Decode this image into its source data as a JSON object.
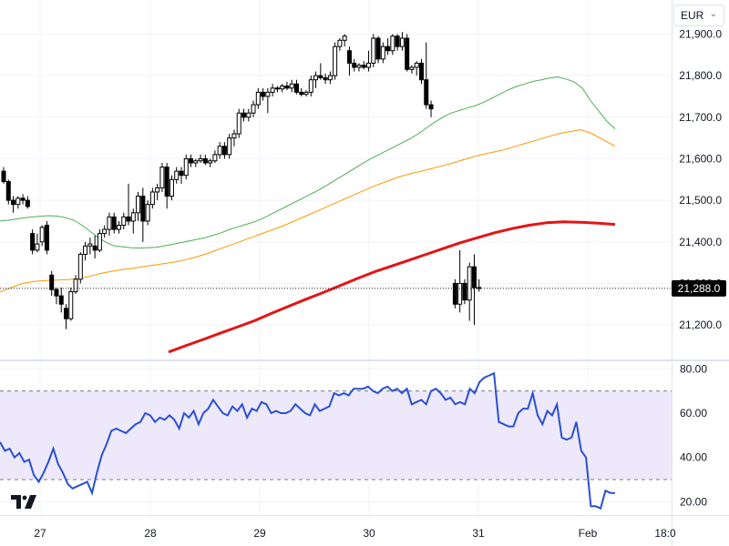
{
  "currency_selector": {
    "value": "EUR",
    "chevron_icon": "chevron-down-icon"
  },
  "last_price_label": "21,288.0",
  "logo": "tradingview-logo",
  "colors": {
    "up_candle": "#ffffff",
    "down_candle": "#000000",
    "ma_short": "#4caf50",
    "ma_mid": "#ff9800",
    "ma_long": "#e51414",
    "rsi_line": "#2a4fd4",
    "rsi_band": "#ede9fa"
  },
  "chart_data": [
    {
      "type": "candlestick",
      "x_ticks": [
        "27",
        "28",
        "29",
        "30",
        "31",
        "Feb",
        "18:0"
      ],
      "y_ticks": [
        "21,200.0",
        "21,300.0",
        "21,400.0",
        "21,500.0",
        "21,600.0",
        "21,700.0",
        "21,800.0",
        "21,900.0"
      ],
      "ylim": [
        21117,
        21982
      ],
      "last_price": 21288,
      "ohlc": [
        [
          21570,
          21580,
          21540,
          21545
        ],
        [
          21545,
          21550,
          21490,
          21500
        ],
        [
          21500,
          21510,
          21470,
          21490
        ],
        [
          21490,
          21510,
          21480,
          21505
        ],
        [
          21505,
          21515,
          21490,
          21500
        ],
        [
          21500,
          21510,
          21480,
          21485
        ],
        [
          21420,
          21430,
          21370,
          21380
        ],
        [
          21380,
          21420,
          21375,
          21395
        ],
        [
          21400,
          21440,
          21390,
          21435
        ],
        [
          21440,
          21450,
          21370,
          21380
        ],
        [
          21320,
          21330,
          21270,
          21285
        ],
        [
          21285,
          21290,
          21250,
          21270
        ],
        [
          21270,
          21290,
          21230,
          21250
        ],
        [
          21240,
          21250,
          21190,
          21215
        ],
        [
          21215,
          21290,
          21210,
          21280
        ],
        [
          21280,
          21320,
          21275,
          21310
        ],
        [
          21310,
          21375,
          21300,
          21370
        ],
        [
          21370,
          21400,
          21355,
          21390
        ],
        [
          21390,
          21410,
          21370,
          21395
        ],
        [
          21390,
          21415,
          21360,
          21380
        ],
        [
          21380,
          21430,
          21375,
          21420
        ],
        [
          21420,
          21440,
          21410,
          21430
        ],
        [
          21430,
          21470,
          21415,
          21460
        ],
        [
          21460,
          21470,
          21420,
          21430
        ],
        [
          21430,
          21450,
          21420,
          21440
        ],
        [
          21440,
          21470,
          21430,
          21460
        ],
        [
          21460,
          21540,
          21440,
          21450
        ],
        [
          21450,
          21480,
          21420,
          21470
        ],
        [
          21470,
          21520,
          21450,
          21510
        ],
        [
          21510,
          21530,
          21400,
          21450
        ],
        [
          21450,
          21500,
          21440,
          21490
        ],
        [
          21490,
          21530,
          21480,
          21520
        ],
        [
          21520,
          21540,
          21500,
          21530
        ],
        [
          21530,
          21590,
          21520,
          21580
        ],
        [
          21580,
          21590,
          21480,
          21510
        ],
        [
          21510,
          21560,
          21500,
          21550
        ],
        [
          21550,
          21580,
          21540,
          21570
        ],
        [
          21570,
          21580,
          21540,
          21560
        ],
        [
          21560,
          21610,
          21550,
          21600
        ],
        [
          21600,
          21610,
          21580,
          21590
        ],
        [
          21590,
          21600,
          21580,
          21595
        ],
        [
          21595,
          21610,
          21590,
          21600
        ],
        [
          21600,
          21610,
          21585,
          21590
        ],
        [
          21590,
          21600,
          21580,
          21595
        ],
        [
          21595,
          21620,
          21590,
          21610
        ],
        [
          21610,
          21640,
          21600,
          21630
        ],
        [
          21630,
          21640,
          21600,
          21610
        ],
        [
          21610,
          21660,
          21600,
          21650
        ],
        [
          21650,
          21670,
          21630,
          21660
        ],
        [
          21660,
          21720,
          21650,
          21710
        ],
        [
          21710,
          21720,
          21690,
          21700
        ],
        [
          21700,
          21720,
          21690,
          21710
        ],
        [
          21710,
          21740,
          21700,
          21730
        ],
        [
          21730,
          21770,
          21720,
          21760
        ],
        [
          21760,
          21770,
          21740,
          21750
        ],
        [
          21750,
          21770,
          21710,
          21760
        ],
        [
          21760,
          21780,
          21750,
          21770
        ],
        [
          21770,
          21775,
          21760,
          21768
        ],
        [
          21768,
          21780,
          21760,
          21775
        ],
        [
          21775,
          21785,
          21765,
          21770
        ],
        [
          21770,
          21790,
          21760,
          21780
        ],
        [
          21780,
          21790,
          21755,
          21760
        ],
        [
          21760,
          21770,
          21750,
          21755
        ],
        [
          21755,
          21765,
          21750,
          21760
        ],
        [
          21760,
          21800,
          21750,
          21790
        ],
        [
          21790,
          21810,
          21770,
          21800
        ],
        [
          21800,
          21830,
          21790,
          21795
        ],
        [
          21795,
          21805,
          21780,
          21790
        ],
        [
          21790,
          21810,
          21780,
          21800
        ],
        [
          21800,
          21880,
          21790,
          21870
        ],
        [
          21870,
          21890,
          21860,
          21885
        ],
        [
          21885,
          21900,
          21870,
          21895
        ],
        [
          21860,
          21870,
          21800,
          21830
        ],
        [
          21830,
          21840,
          21810,
          21820
        ],
        [
          21820,
          21830,
          21810,
          21825
        ],
        [
          21825,
          21835,
          21815,
          21820
        ],
        [
          21820,
          21860,
          21810,
          21830
        ],
        [
          21830,
          21900,
          21820,
          21890
        ],
        [
          21890,
          21895,
          21830,
          21840
        ],
        [
          21840,
          21880,
          21830,
          21870
        ],
        [
          21870,
          21890,
          21850,
          21860
        ],
        [
          21860,
          21900,
          21850,
          21895
        ],
        [
          21895,
          21900,
          21860,
          21870
        ],
        [
          21870,
          21905,
          21860,
          21890
        ],
        [
          21890,
          21900,
          21810,
          21815
        ],
        [
          21815,
          21825,
          21805,
          21820
        ],
        [
          21820,
          21835,
          21800,
          21830
        ],
        [
          21830,
          21840,
          21780,
          21790
        ],
        [
          21790,
          21880,
          21720,
          21730
        ],
        [
          21730,
          21740,
          21700,
          21720
        ],
        null,
        null,
        null,
        null,
        [
          21300,
          21310,
          21240,
          21250
        ],
        [
          21250,
          21380,
          21230,
          21300
        ],
        [
          21300,
          21310,
          21250,
          21260
        ],
        [
          21260,
          21350,
          21210,
          21340
        ],
        [
          21340,
          21370,
          21200,
          21290
        ],
        [
          21290,
          21310,
          21280,
          21288
        ]
      ],
      "ma_short": [
        21450,
        21452,
        21455,
        21458,
        21460,
        21462,
        21463,
        21462,
        21458,
        21452,
        21440,
        21425,
        21410,
        21398,
        21390,
        21388,
        21386,
        21385,
        21386,
        21387,
        21390,
        21394,
        21398,
        21402,
        21406,
        21410,
        21416,
        21422,
        21430,
        21436,
        21442,
        21448,
        21456,
        21466,
        21476,
        21486,
        21496,
        21506,
        21516,
        21526,
        21538,
        21550,
        21562,
        21574,
        21586,
        21598,
        21608,
        21618,
        21628,
        21638,
        21648,
        21660,
        21674,
        21688,
        21700,
        21710,
        21716,
        21722,
        21728,
        21736,
        21746,
        21756,
        21766,
        21774,
        21780,
        21786,
        21790,
        21794,
        21797,
        21792,
        21785,
        21770,
        21740,
        21715,
        21690,
        21672
      ],
      "ma_mid": [
        21280,
        21290,
        21300,
        21305,
        21307,
        21308,
        21309,
        21312,
        21318,
        21325,
        21330,
        21334,
        21338,
        21342,
        21346,
        21350,
        21355,
        21362,
        21370,
        21380,
        21390,
        21400,
        21410,
        21420,
        21430,
        21440,
        21452,
        21464,
        21476,
        21488,
        21500,
        21512,
        21524,
        21536,
        21546,
        21556,
        21564,
        21570,
        21577,
        21584,
        21592,
        21600,
        21608,
        21614,
        21620,
        21628,
        21636,
        21644,
        21652,
        21660,
        21665,
        21670,
        21660,
        21645,
        21630
      ],
      "ma_long": [
        21135,
        21150,
        21165,
        21180,
        21195,
        21210,
        21228,
        21245,
        21262,
        21278,
        21295,
        21312,
        21328,
        21342,
        21356,
        21370,
        21384,
        21398,
        21410,
        21422,
        21432,
        21440,
        21446,
        21448,
        21447,
        21445,
        21442
      ],
      "ylabel": "",
      "xlabel": ""
    },
    {
      "type": "line",
      "name": "RSI",
      "y_ticks": [
        "20.00",
        "40.00",
        "60.00",
        "80.00"
      ],
      "ylim": [
        14,
        83
      ],
      "overbought": 70,
      "oversold": 30,
      "values": [
        47,
        43,
        44,
        40,
        42,
        38,
        39,
        32,
        29,
        33,
        38,
        44,
        37,
        33,
        28,
        26,
        27,
        28,
        29,
        24,
        33,
        41,
        46,
        52,
        53,
        52,
        51,
        53,
        55,
        56,
        60,
        59,
        56,
        58,
        57,
        59,
        57,
        53,
        60,
        58,
        61,
        55,
        60,
        62,
        66,
        63,
        60,
        59,
        63,
        61,
        64,
        58,
        62,
        61,
        65,
        64,
        60,
        61,
        60,
        60,
        61,
        64,
        62,
        60,
        59,
        64,
        61,
        62,
        63,
        69,
        68,
        69,
        68,
        71,
        71,
        71,
        72,
        70,
        69,
        71,
        72,
        70,
        71,
        69,
        71,
        64,
        65,
        66,
        64,
        70,
        71,
        69,
        66,
        67,
        64,
        65,
        64,
        71,
        69,
        74,
        76,
        77,
        78,
        56,
        55,
        54,
        54,
        60,
        62,
        62,
        69,
        59,
        55,
        61,
        59,
        64,
        49,
        48,
        49,
        56,
        43,
        40,
        18,
        18,
        17,
        25,
        24,
        24
      ]
    }
  ]
}
